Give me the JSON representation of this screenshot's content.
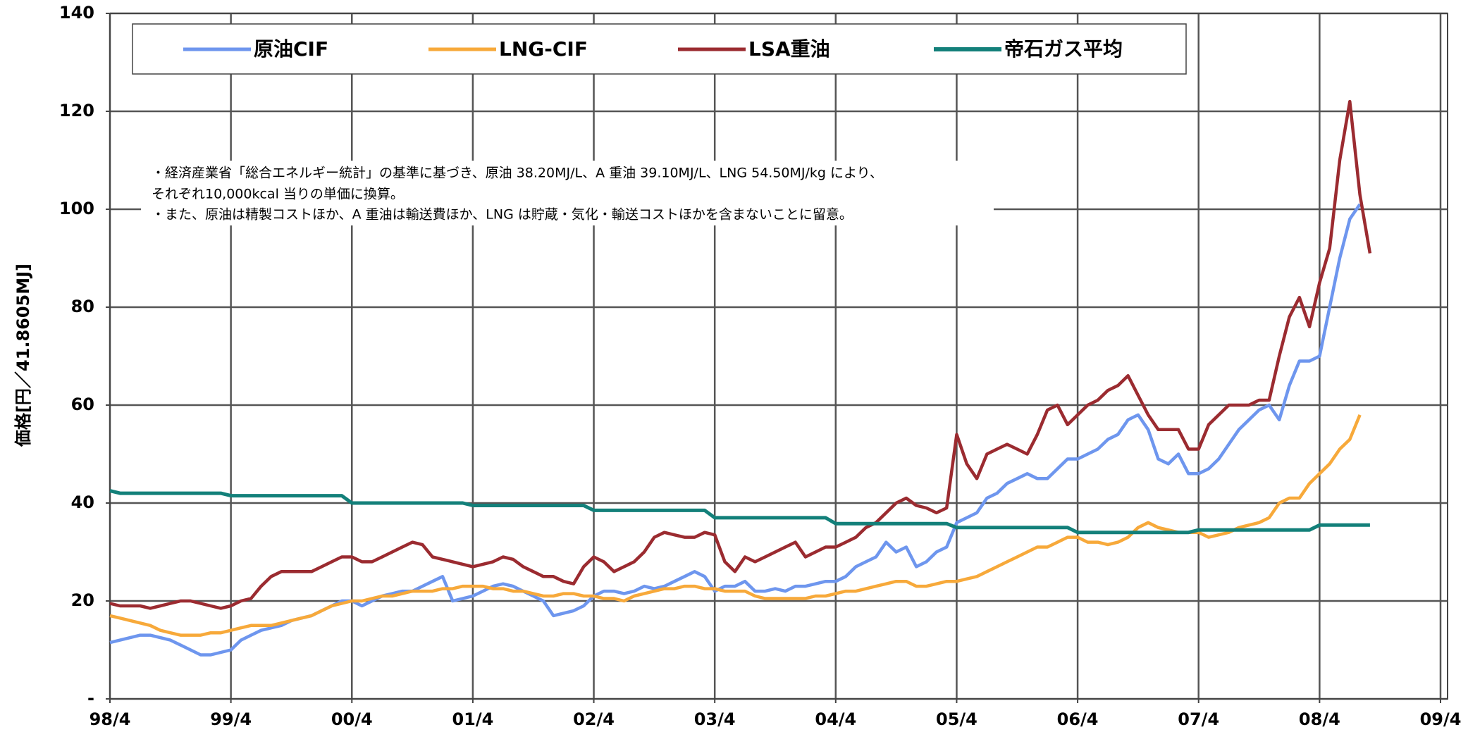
{
  "chart_data": {
    "type": "line",
    "y_label": "価格[円／41.8605MJ]",
    "annotations": [
      "・経済産業省「総合エネルギー統計」の基準に基づき、原油 38.20MJ/L、A 重油 39.10MJ/L、LNG 54.50MJ/kg により、",
      "それぞれ10,000kcal 当りの単価に換算。",
      "・また、原油は精製コストほか、A 重油は輸送費ほか、LNG は貯蔵・気化・輸送コストほかを含まないことに留意。"
    ],
    "x": [
      "98/4",
      "98/5",
      "98/6",
      "98/7",
      "98/8",
      "98/9",
      "98/10",
      "98/11",
      "98/12",
      "99/1",
      "99/2",
      "99/3",
      "99/4",
      "99/5",
      "99/6",
      "99/7",
      "99/8",
      "99/9",
      "99/10",
      "99/11",
      "99/12",
      "00/1",
      "00/2",
      "00/3",
      "00/4",
      "00/5",
      "00/6",
      "00/7",
      "00/8",
      "00/9",
      "00/10",
      "00/11",
      "00/12",
      "01/1",
      "01/2",
      "01/3",
      "01/4",
      "01/5",
      "01/6",
      "01/7",
      "01/8",
      "01/9",
      "01/10",
      "01/11",
      "01/12",
      "02/1",
      "02/2",
      "02/3",
      "02/4",
      "02/5",
      "02/6",
      "02/7",
      "02/8",
      "02/9",
      "02/10",
      "02/11",
      "02/12",
      "03/1",
      "03/2",
      "03/3",
      "03/4",
      "03/5",
      "03/6",
      "03/7",
      "03/8",
      "03/9",
      "03/10",
      "03/11",
      "03/12",
      "04/1",
      "04/2",
      "04/3",
      "04/4",
      "04/5",
      "04/6",
      "04/7",
      "04/8",
      "04/9",
      "04/10",
      "04/11",
      "04/12",
      "05/1",
      "05/2",
      "05/3",
      "05/4",
      "05/5",
      "05/6",
      "05/7",
      "05/8",
      "05/9",
      "05/10",
      "05/11",
      "05/12",
      "06/1",
      "06/2",
      "06/3",
      "06/4",
      "06/5",
      "06/6",
      "06/7",
      "06/8",
      "06/9",
      "06/10",
      "06/11",
      "06/12",
      "07/1",
      "07/2",
      "07/3",
      "07/4",
      "07/5",
      "07/6",
      "07/7",
      "07/8",
      "07/9",
      "07/10",
      "07/11",
      "07/12",
      "08/1",
      "08/2",
      "08/3",
      "08/4",
      "08/5",
      "08/6",
      "08/7",
      "08/8",
      "08/9"
    ],
    "xlim": [
      "98/4",
      "09/4"
    ],
    "xticks": [
      "98/4",
      "99/4",
      "00/4",
      "01/4",
      "02/4",
      "03/4",
      "04/4",
      "05/4",
      "06/4",
      "07/4",
      "08/4",
      "09/4"
    ],
    "ylim": [
      0,
      140
    ],
    "yticks": [
      {
        "value": 0,
        "label": "-"
      },
      20,
      40,
      60,
      80,
      100,
      120,
      140
    ],
    "grid": true,
    "series": [
      {
        "name": "原油CIF",
        "color": "#6e96ee",
        "values": [
          11.5,
          12,
          12.5,
          13,
          13,
          12.5,
          12,
          11,
          10,
          9,
          9,
          9.5,
          10,
          12,
          13,
          14,
          14.5,
          15,
          16,
          16.5,
          17,
          18,
          19,
          20,
          20,
          19,
          20,
          21,
          21.5,
          22,
          22,
          23,
          24,
          25,
          20,
          20.5,
          21,
          22,
          23,
          23.5,
          23,
          22,
          21,
          20,
          17,
          17.5,
          18,
          19,
          21,
          22,
          22,
          21.5,
          22,
          23,
          22.5,
          23,
          24,
          25,
          26,
          25,
          22,
          23,
          23,
          24,
          22,
          22,
          22.5,
          22,
          23,
          23,
          23.5,
          24,
          24,
          25,
          27,
          28,
          29,
          32,
          30,
          31,
          27,
          28,
          30,
          31,
          36,
          37,
          38,
          41,
          42,
          44,
          45,
          46,
          45,
          45,
          47,
          49,
          49,
          50,
          51,
          53,
          54,
          57,
          58,
          55,
          49,
          48,
          50,
          46,
          46,
          47,
          49,
          52,
          55,
          57,
          59,
          60,
          57,
          64,
          69,
          69,
          70,
          80,
          90,
          98,
          101,
          null
        ]
      },
      {
        "name": "LNG-CIF",
        "color": "#f7a93a",
        "values": [
          17,
          16.5,
          16,
          15.5,
          15,
          14,
          13.5,
          13,
          13,
          13,
          13.5,
          13.5,
          14,
          14.5,
          15,
          15,
          15,
          15.5,
          16,
          16.5,
          17,
          18,
          19,
          19.5,
          20,
          20,
          20.5,
          21,
          21,
          21.5,
          22,
          22,
          22,
          22.5,
          22.5,
          23,
          23,
          23,
          22.5,
          22.5,
          22,
          22,
          21.5,
          21,
          21,
          21.5,
          21.5,
          21,
          21,
          20.5,
          20.5,
          20,
          21,
          21.5,
          22,
          22.5,
          22.5,
          23,
          23,
          22.5,
          22.5,
          22,
          22,
          22,
          21,
          20.5,
          20.5,
          20.5,
          20.5,
          20.5,
          21,
          21,
          21.5,
          22,
          22,
          22.5,
          23,
          23.5,
          24,
          24,
          23,
          23,
          23.5,
          24,
          24,
          24.5,
          25,
          26,
          27,
          28,
          29,
          30,
          31,
          31,
          32,
          33,
          33,
          32,
          32,
          31.5,
          32,
          33,
          35,
          36,
          35,
          34.5,
          34,
          34,
          34,
          33,
          33.5,
          34,
          35,
          35.5,
          36,
          37,
          40,
          41,
          41,
          44,
          46,
          48,
          51,
          53,
          58,
          null
        ]
      },
      {
        "name": "LSA重油",
        "color": "#9b2b30",
        "values": [
          19.5,
          19,
          19,
          19,
          18.5,
          19,
          19.5,
          20,
          20,
          19.5,
          19,
          18.5,
          19,
          20,
          20.5,
          23,
          25,
          26,
          26,
          26,
          26,
          27,
          28,
          29,
          29,
          28,
          28,
          29,
          30,
          31,
          32,
          31.5,
          29,
          28.5,
          28,
          27.5,
          27,
          27.5,
          28,
          29,
          28.5,
          27,
          26,
          25,
          25,
          24,
          23.5,
          27,
          29,
          28,
          26,
          27,
          28,
          30,
          33,
          34,
          33.5,
          33,
          33,
          34,
          33.5,
          28,
          26,
          29,
          28,
          29,
          30,
          31,
          32,
          29,
          30,
          31,
          31,
          32,
          33,
          35,
          36,
          38,
          40,
          41,
          39.5,
          39,
          38,
          39,
          54,
          48,
          45,
          50,
          51,
          52,
          51,
          50,
          54,
          59,
          60,
          56,
          58,
          60,
          61,
          63,
          64,
          66,
          62,
          58,
          55,
          55,
          55,
          51,
          51,
          56,
          58,
          60,
          60,
          60,
          61,
          61,
          70,
          78,
          82,
          76,
          85,
          92,
          110,
          122,
          103,
          91
        ]
      },
      {
        "name": "帝石ガス平均",
        "color": "#13807a",
        "values": [
          42.5,
          42,
          42,
          42,
          42,
          42,
          42,
          42,
          42,
          42,
          42,
          42,
          41.5,
          41.5,
          41.5,
          41.5,
          41.5,
          41.5,
          41.5,
          41.5,
          41.5,
          41.5,
          41.5,
          41.5,
          40,
          40,
          40,
          40,
          40,
          40,
          40,
          40,
          40,
          40,
          40,
          40,
          39.5,
          39.5,
          39.5,
          39.5,
          39.5,
          39.5,
          39.5,
          39.5,
          39.5,
          39.5,
          39.5,
          39.5,
          38.5,
          38.5,
          38.5,
          38.5,
          38.5,
          38.5,
          38.5,
          38.5,
          38.5,
          38.5,
          38.5,
          38.5,
          37,
          37,
          37,
          37,
          37,
          37,
          37,
          37,
          37,
          37,
          37,
          37,
          35.8,
          35.8,
          35.8,
          35.8,
          35.8,
          35.8,
          35.8,
          35.8,
          35.8,
          35.8,
          35.8,
          35.8,
          35,
          35,
          35,
          35,
          35,
          35,
          35,
          35,
          35,
          35,
          35,
          35,
          34,
          34,
          34,
          34,
          34,
          34,
          34,
          34,
          34,
          34,
          34,
          34,
          34.5,
          34.5,
          34.5,
          34.5,
          34.5,
          34.5,
          34.5,
          34.5,
          34.5,
          34.5,
          34.5,
          34.5,
          35.5,
          35.5,
          35.5,
          35.5,
          35.5,
          35.5
        ]
      }
    ]
  }
}
